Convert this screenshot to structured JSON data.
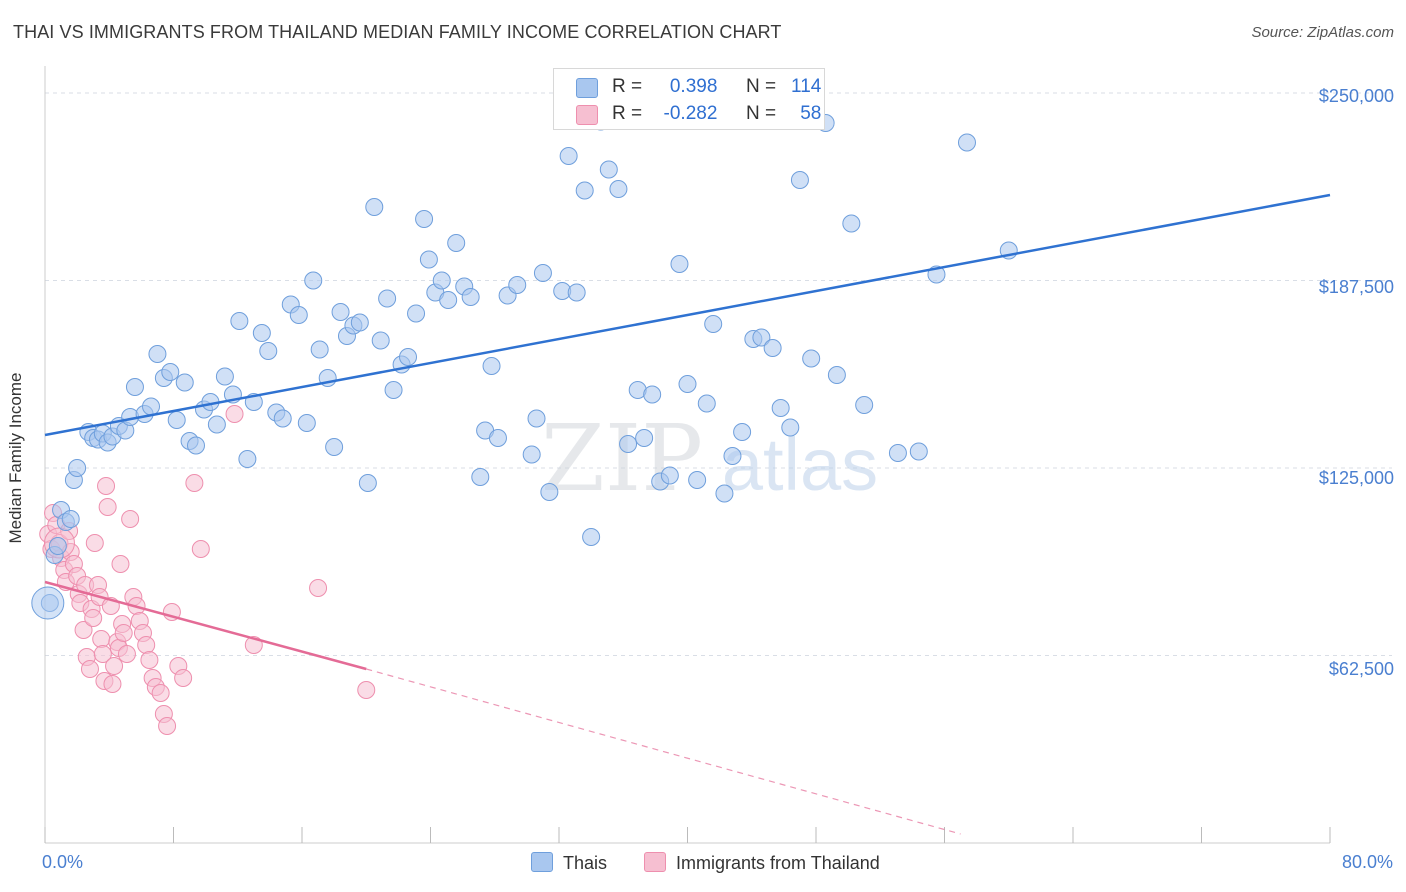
{
  "title": "THAI VS IMMIGRANTS FROM THAILAND MEDIAN FAMILY INCOME CORRELATION CHART",
  "source": "Source: ZipAtlas.com",
  "watermark": {
    "zip": "ZIP",
    "atlas": "atlas"
  },
  "colors": {
    "blue_fill": "#a9c7ef",
    "blue_stroke": "#6f9fdc",
    "blue_line": "#2f72d1",
    "pink_fill": "#f6bfd1",
    "pink_stroke": "#ee8fae",
    "pink_line": "#e46b96",
    "grid": "#d9dee6",
    "tick_label": "#4a7fd0"
  },
  "legend": {
    "rows": [
      {
        "r_label": "R =",
        "r_value": "0.398",
        "n_label": "N =",
        "n_value": "114"
      },
      {
        "r_label": "R =",
        "r_value": "-0.282",
        "n_label": "N =",
        "n_value": "58"
      }
    ]
  },
  "bottom_legend": {
    "series1": "Thais",
    "series2": "Immigrants from Thailand"
  },
  "axes": {
    "ylabel": "Median Family Income",
    "yticks": [
      "$250,000",
      "$187,500",
      "$125,000",
      "$62,500"
    ],
    "xtick_left": "0.0%",
    "xtick_right": "80.0%"
  },
  "chart_data": {
    "type": "scatter",
    "title": "THAI VS IMMIGRANTS FROM THAILAND MEDIAN FAMILY INCOME CORRELATION CHART",
    "xlabel": "",
    "ylabel": "Median Family Income",
    "xlim": [
      0,
      80
    ],
    "ylim": [
      0,
      256000
    ],
    "yticks": [
      62500,
      125000,
      187500,
      250000
    ],
    "grid": true,
    "legend_placement": "top-center",
    "series": [
      {
        "name": "Thais",
        "R": 0.398,
        "N": 114,
        "trend": {
          "x": [
            0,
            80
          ],
          "y": [
            136000,
            216000
          ]
        },
        "points": [
          [
            0.3,
            80000
          ],
          [
            0.6,
            96000
          ],
          [
            0.8,
            99000
          ],
          [
            1.0,
            111000
          ],
          [
            1.3,
            107000
          ],
          [
            1.6,
            108000
          ],
          [
            1.8,
            121000
          ],
          [
            2.0,
            125000
          ],
          [
            2.7,
            137000
          ],
          [
            3.0,
            135000
          ],
          [
            3.3,
            134500
          ],
          [
            3.6,
            136500
          ],
          [
            3.9,
            133500
          ],
          [
            4.2,
            135500
          ],
          [
            4.6,
            139000
          ],
          [
            5.0,
            137500
          ],
          [
            5.3,
            142000
          ],
          [
            5.6,
            152000
          ],
          [
            6.2,
            143000
          ],
          [
            6.6,
            145500
          ],
          [
            7.0,
            163000
          ],
          [
            7.4,
            155000
          ],
          [
            7.8,
            157000
          ],
          [
            8.2,
            141000
          ],
          [
            8.7,
            153500
          ],
          [
            9.0,
            134000
          ],
          [
            9.4,
            132500
          ],
          [
            9.9,
            144500
          ],
          [
            10.3,
            147000
          ],
          [
            10.7,
            139500
          ],
          [
            11.2,
            155500
          ],
          [
            11.7,
            149500
          ],
          [
            12.1,
            174000
          ],
          [
            12.6,
            128000
          ],
          [
            13.0,
            147000
          ],
          [
            13.5,
            170000
          ],
          [
            13.9,
            164000
          ],
          [
            14.4,
            143500
          ],
          [
            14.8,
            141500
          ],
          [
            15.3,
            179500
          ],
          [
            15.8,
            176000
          ],
          [
            16.3,
            140000
          ],
          [
            16.7,
            187500
          ],
          [
            17.1,
            164500
          ],
          [
            17.6,
            155000
          ],
          [
            18.0,
            132000
          ],
          [
            18.4,
            177000
          ],
          [
            18.8,
            169000
          ],
          [
            19.2,
            172500
          ],
          [
            19.6,
            173500
          ],
          [
            20.1,
            120000
          ],
          [
            20.5,
            212000
          ],
          [
            20.9,
            167500
          ],
          [
            21.3,
            181500
          ],
          [
            21.7,
            151000
          ],
          [
            22.2,
            159500
          ],
          [
            22.6,
            162000
          ],
          [
            23.1,
            176500
          ],
          [
            23.6,
            208000
          ],
          [
            23.9,
            194500
          ],
          [
            24.3,
            183500
          ],
          [
            24.7,
            187500
          ],
          [
            25.1,
            181000
          ],
          [
            25.6,
            200000
          ],
          [
            26.1,
            185500
          ],
          [
            26.5,
            182000
          ],
          [
            27.1,
            122000
          ],
          [
            27.4,
            137500
          ],
          [
            27.8,
            159000
          ],
          [
            28.2,
            135000
          ],
          [
            28.8,
            182500
          ],
          [
            29.4,
            186000
          ],
          [
            30.3,
            129500
          ],
          [
            30.6,
            141500
          ],
          [
            31.0,
            190000
          ],
          [
            31.4,
            117000
          ],
          [
            32.2,
            184000
          ],
          [
            32.6,
            229000
          ],
          [
            33.1,
            183500
          ],
          [
            33.6,
            217500
          ],
          [
            34.0,
            102000
          ],
          [
            34.6,
            240500
          ],
          [
            35.1,
            224500
          ],
          [
            35.7,
            218000
          ],
          [
            36.3,
            133000
          ],
          [
            36.9,
            151000
          ],
          [
            37.3,
            135000
          ],
          [
            37.8,
            149500
          ],
          [
            38.3,
            120500
          ],
          [
            38.9,
            122500
          ],
          [
            39.5,
            193000
          ],
          [
            40.0,
            153000
          ],
          [
            40.6,
            121000
          ],
          [
            41.2,
            146500
          ],
          [
            41.6,
            173000
          ],
          [
            42.3,
            116500
          ],
          [
            42.8,
            129000
          ],
          [
            43.4,
            137000
          ],
          [
            44.1,
            168000
          ],
          [
            44.6,
            168500
          ],
          [
            45.3,
            165000
          ],
          [
            45.8,
            145000
          ],
          [
            46.4,
            138500
          ],
          [
            47.0,
            221000
          ],
          [
            47.7,
            161500
          ],
          [
            48.6,
            240000
          ],
          [
            49.3,
            156000
          ],
          [
            50.2,
            206500
          ],
          [
            51.0,
            146000
          ],
          [
            53.1,
            130000
          ],
          [
            54.4,
            130500
          ],
          [
            55.5,
            189500
          ],
          [
            57.4,
            233500
          ],
          [
            60.0,
            197500
          ]
        ]
      },
      {
        "name": "Immigrants from Thailand",
        "R": -0.282,
        "N": 58,
        "trend": {
          "x": [
            0,
            20
          ],
          "y": [
            87000,
            58000
          ]
        },
        "trend_dashed": {
          "x": [
            20,
            57
          ],
          "y": [
            58000,
            3000
          ]
        },
        "points": [
          [
            0.2,
            103000
          ],
          [
            0.4,
            98000
          ],
          [
            0.5,
            110000
          ],
          [
            0.7,
            106000
          ],
          [
            0.9,
            100000
          ],
          [
            1.0,
            95000
          ],
          [
            1.2,
            91000
          ],
          [
            1.3,
            87000
          ],
          [
            1.5,
            104000
          ],
          [
            1.6,
            97000
          ],
          [
            1.8,
            93000
          ],
          [
            2.0,
            89000
          ],
          [
            2.1,
            83000
          ],
          [
            2.2,
            80000
          ],
          [
            2.4,
            71000
          ],
          [
            2.5,
            86000
          ],
          [
            2.6,
            62000
          ],
          [
            2.8,
            58000
          ],
          [
            2.9,
            78000
          ],
          [
            3.0,
            75000
          ],
          [
            3.1,
            100000
          ],
          [
            3.3,
            86000
          ],
          [
            3.4,
            82000
          ],
          [
            3.5,
            68000
          ],
          [
            3.6,
            63000
          ],
          [
            3.7,
            54000
          ],
          [
            3.8,
            119000
          ],
          [
            3.9,
            112000
          ],
          [
            4.1,
            79000
          ],
          [
            4.2,
            53000
          ],
          [
            4.3,
            59000
          ],
          [
            4.5,
            67000
          ],
          [
            4.6,
            65000
          ],
          [
            4.7,
            93000
          ],
          [
            4.8,
            73000
          ],
          [
            4.9,
            70000
          ],
          [
            5.1,
            63000
          ],
          [
            5.3,
            108000
          ],
          [
            5.5,
            82000
          ],
          [
            5.7,
            79000
          ],
          [
            5.9,
            74000
          ],
          [
            6.1,
            70000
          ],
          [
            6.3,
            66000
          ],
          [
            6.5,
            61000
          ],
          [
            6.7,
            55000
          ],
          [
            6.9,
            52000
          ],
          [
            7.2,
            50000
          ],
          [
            7.4,
            43000
          ],
          [
            7.6,
            39000
          ],
          [
            7.9,
            77000
          ],
          [
            8.3,
            59000
          ],
          [
            8.6,
            55000
          ],
          [
            9.3,
            120000
          ],
          [
            9.7,
            98000
          ],
          [
            11.8,
            143000
          ],
          [
            13.0,
            66000
          ],
          [
            17.0,
            85000
          ],
          [
            20.0,
            51000
          ]
        ]
      }
    ]
  }
}
